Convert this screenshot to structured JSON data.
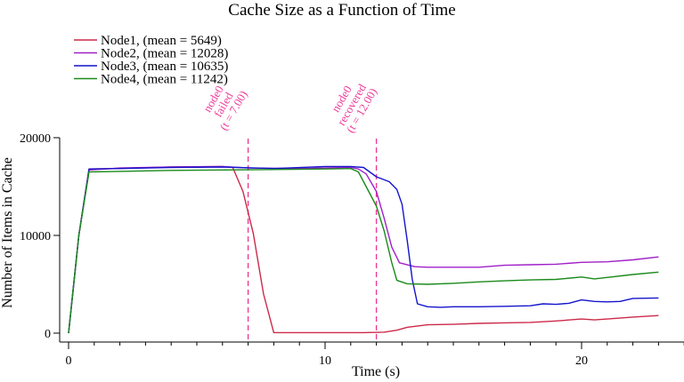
{
  "chart_data": {
    "type": "line",
    "title": "Cache Size as a Function of Time",
    "xlabel": "Time (s)",
    "ylabel": "Number of Items in Cache",
    "xlim": [
      0,
      24
    ],
    "ylim": [
      0,
      20000
    ],
    "x_ticks": [
      0,
      10,
      20
    ],
    "y_ticks": [
      0,
      10000,
      20000
    ],
    "x_minor_step": 1,
    "grid": false,
    "legend_position": "top-left",
    "series": [
      {
        "name": "Node1, (mean = 5649)",
        "color": "#cc2a4a",
        "points": [
          [
            0,
            0
          ],
          [
            0.4,
            10000
          ],
          [
            0.8,
            16800
          ],
          [
            2,
            16850
          ],
          [
            4,
            17000
          ],
          [
            6,
            17050
          ],
          [
            6.4,
            16950
          ],
          [
            6.8,
            14500
          ],
          [
            7.2,
            10200
          ],
          [
            7.6,
            4000
          ],
          [
            8,
            50
          ],
          [
            10,
            50
          ],
          [
            11.5,
            50
          ],
          [
            12.3,
            100
          ],
          [
            12.8,
            300
          ],
          [
            13.2,
            600
          ],
          [
            14,
            850
          ],
          [
            15,
            900
          ],
          [
            16,
            1000
          ],
          [
            17,
            1050
          ],
          [
            18,
            1100
          ],
          [
            19,
            1250
          ],
          [
            20,
            1450
          ],
          [
            20.5,
            1350
          ],
          [
            21,
            1450
          ],
          [
            22,
            1650
          ],
          [
            23,
            1800
          ]
        ]
      },
      {
        "name": "Node2, (mean = 12028)",
        "color": "#a020c8",
        "points": [
          [
            0,
            0
          ],
          [
            0.4,
            10000
          ],
          [
            0.8,
            16700
          ],
          [
            2,
            16900
          ],
          [
            4,
            17000
          ],
          [
            6,
            17050
          ],
          [
            7,
            16900
          ],
          [
            9,
            16850
          ],
          [
            11,
            16950
          ],
          [
            11.3,
            16800
          ],
          [
            11.6,
            16300
          ],
          [
            12,
            14500
          ],
          [
            12.3,
            11800
          ],
          [
            12.6,
            8800
          ],
          [
            12.9,
            7200
          ],
          [
            13.5,
            6800
          ],
          [
            14,
            6750
          ],
          [
            15,
            6750
          ],
          [
            16,
            6750
          ],
          [
            17,
            6950
          ],
          [
            18,
            7000
          ],
          [
            19,
            7050
          ],
          [
            20,
            7250
          ],
          [
            21,
            7300
          ],
          [
            22,
            7500
          ],
          [
            23,
            7800
          ]
        ]
      },
      {
        "name": "Node3, (mean = 10635)",
        "color": "#1414cc",
        "points": [
          [
            0,
            0
          ],
          [
            0.4,
            10000
          ],
          [
            0.8,
            16800
          ],
          [
            2,
            16850
          ],
          [
            4,
            16950
          ],
          [
            6,
            17000
          ],
          [
            8,
            16850
          ],
          [
            10,
            17050
          ],
          [
            11,
            17050
          ],
          [
            11.5,
            16950
          ],
          [
            12,
            16000
          ],
          [
            12.5,
            15500
          ],
          [
            12.8,
            14700
          ],
          [
            13,
            13200
          ],
          [
            13.2,
            9500
          ],
          [
            13.4,
            5500
          ],
          [
            13.6,
            3000
          ],
          [
            14,
            2700
          ],
          [
            14.5,
            2650
          ],
          [
            15,
            2700
          ],
          [
            16,
            2700
          ],
          [
            17,
            2750
          ],
          [
            18,
            2800
          ],
          [
            18.5,
            3000
          ],
          [
            19,
            2950
          ],
          [
            19.5,
            3050
          ],
          [
            20,
            3400
          ],
          [
            20.5,
            3250
          ],
          [
            21,
            3200
          ],
          [
            21.5,
            3250
          ],
          [
            22,
            3550
          ],
          [
            23,
            3600
          ]
        ]
      },
      {
        "name": "Node4, (mean = 11242)",
        "color": "#1a8a1a",
        "points": [
          [
            0,
            0
          ],
          [
            0.4,
            10000
          ],
          [
            0.8,
            16500
          ],
          [
            2,
            16550
          ],
          [
            4,
            16650
          ],
          [
            6,
            16700
          ],
          [
            8,
            16750
          ],
          [
            10,
            16800
          ],
          [
            11,
            16850
          ],
          [
            11.3,
            16500
          ],
          [
            11.6,
            15000
          ],
          [
            12,
            13000
          ],
          [
            12.3,
            10500
          ],
          [
            12.6,
            7200
          ],
          [
            12.8,
            5400
          ],
          [
            13.2,
            5050
          ],
          [
            14,
            5000
          ],
          [
            15,
            5100
          ],
          [
            16,
            5250
          ],
          [
            17,
            5350
          ],
          [
            18,
            5450
          ],
          [
            19,
            5500
          ],
          [
            20,
            5750
          ],
          [
            20.5,
            5550
          ],
          [
            21,
            5700
          ],
          [
            22,
            6000
          ],
          [
            23,
            6250
          ]
        ]
      }
    ],
    "annotations": [
      {
        "x": 7.0,
        "lines": [
          "node0",
          "failed",
          "(t = 7.00)"
        ],
        "color": "#ee3a9a"
      },
      {
        "x": 12.0,
        "lines": [
          "node0",
          "recovered",
          "(t = 12.00)"
        ],
        "color": "#ee3a9a"
      }
    ]
  }
}
